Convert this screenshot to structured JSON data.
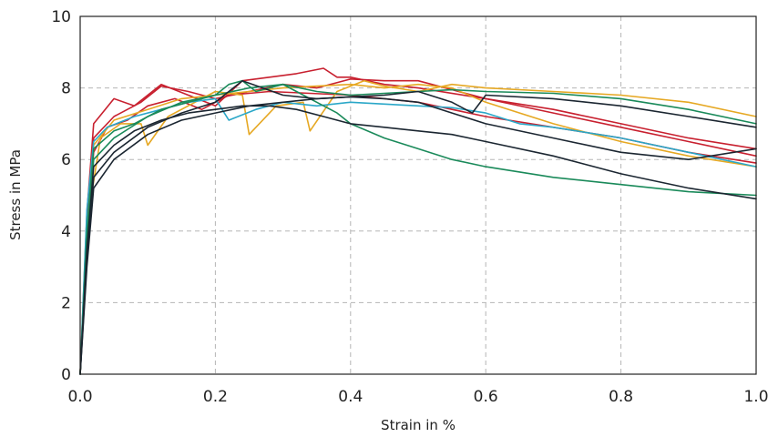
{
  "chart_data": {
    "type": "line",
    "title": "",
    "xlabel": "Strain in %",
    "ylabel": "Stress in MPa",
    "xlim": [
      0,
      1.0
    ],
    "ylim": [
      0,
      10
    ],
    "xticks": [
      "0.0",
      "0.2",
      "0.4",
      "0.6",
      "0.8",
      "1.0"
    ],
    "yticks": [
      "0",
      "2",
      "4",
      "6",
      "8",
      "10"
    ],
    "grid": true,
    "legend": "none",
    "series": [
      {
        "color": "#c8202f",
        "x": [
          0,
          0.01,
          0.02,
          0.05,
          0.08,
          0.12,
          0.16,
          0.2,
          0.24,
          0.28,
          0.32,
          0.36,
          0.38,
          0.4,
          0.45,
          0.5,
          0.6,
          0.7,
          0.8,
          0.9,
          1.0
        ],
        "y": [
          0,
          4.5,
          7.0,
          7.7,
          7.5,
          8.1,
          7.8,
          7.5,
          8.2,
          8.3,
          8.4,
          8.55,
          8.3,
          8.3,
          8.1,
          8.0,
          7.7,
          7.4,
          7.0,
          6.6,
          6.3
        ]
      },
      {
        "color": "#c8202f",
        "x": [
          0,
          0.01,
          0.02,
          0.05,
          0.09,
          0.12,
          0.16,
          0.2,
          0.25,
          0.3,
          0.35,
          0.4,
          0.45,
          0.5,
          0.6,
          0.7,
          0.8,
          0.9,
          1.0
        ],
        "y": [
          0,
          4.0,
          6.6,
          7.2,
          7.6,
          8.05,
          7.9,
          7.7,
          7.9,
          8.1,
          8.0,
          8.25,
          8.2,
          8.2,
          7.7,
          7.3,
          6.9,
          6.5,
          6.1
        ]
      },
      {
        "color": "#c8202f",
        "x": [
          0,
          0.01,
          0.02,
          0.04,
          0.07,
          0.1,
          0.14,
          0.18,
          0.22,
          0.28,
          0.34,
          0.4,
          0.5,
          0.6,
          0.7,
          0.8,
          0.9,
          1.0
        ],
        "y": [
          0,
          3.8,
          6.2,
          6.9,
          7.1,
          7.5,
          7.7,
          7.4,
          7.8,
          7.9,
          7.85,
          7.8,
          7.6,
          7.2,
          6.9,
          6.6,
          6.2,
          5.9
        ]
      },
      {
        "color": "#e6a823",
        "x": [
          0,
          0.01,
          0.03,
          0.06,
          0.09,
          0.1,
          0.13,
          0.17,
          0.2,
          0.24,
          0.25,
          0.29,
          0.33,
          0.34,
          0.38,
          0.42,
          0.45,
          0.5,
          0.55,
          0.6,
          0.7,
          0.8,
          0.9,
          1.0
        ],
        "y": [
          0,
          4.2,
          6.6,
          7.0,
          7.0,
          6.4,
          7.2,
          7.6,
          7.9,
          7.8,
          6.7,
          7.5,
          7.6,
          6.8,
          7.9,
          8.2,
          8.05,
          7.9,
          8.1,
          8.0,
          7.9,
          7.8,
          7.6,
          7.2
        ]
      },
      {
        "color": "#e6a823",
        "x": [
          0,
          0.01,
          0.02,
          0.05,
          0.1,
          0.15,
          0.2,
          0.25,
          0.3,
          0.35,
          0.4,
          0.45,
          0.5,
          0.55,
          0.6,
          0.7,
          0.8,
          0.9,
          1.0
        ],
        "y": [
          0,
          3.9,
          6.4,
          7.1,
          7.4,
          7.7,
          7.8,
          7.9,
          8.0,
          8.05,
          8.1,
          8.0,
          8.1,
          8.0,
          7.6,
          7.0,
          6.5,
          6.1,
          5.8
        ]
      },
      {
        "color": "#2aa7c8",
        "x": [
          0,
          0.01,
          0.02,
          0.04,
          0.08,
          0.12,
          0.16,
          0.2,
          0.22,
          0.26,
          0.3,
          0.35,
          0.4,
          0.45,
          0.5,
          0.55,
          0.6,
          0.65,
          0.7,
          0.8,
          0.9,
          1.0
        ],
        "y": [
          0,
          4.6,
          6.5,
          6.9,
          7.2,
          7.4,
          7.6,
          7.7,
          7.1,
          7.4,
          7.6,
          7.5,
          7.6,
          7.55,
          7.5,
          7.45,
          7.3,
          7.0,
          6.9,
          6.6,
          6.2,
          5.8
        ]
      },
      {
        "color": "#1a8a5a",
        "x": [
          0,
          0.01,
          0.02,
          0.05,
          0.08,
          0.12,
          0.16,
          0.2,
          0.22,
          0.24,
          0.26,
          0.3,
          0.32,
          0.35,
          0.38,
          0.4,
          0.45,
          0.5,
          0.55,
          0.6,
          0.7,
          0.8,
          0.9,
          1.0
        ],
        "y": [
          0,
          4.0,
          6.3,
          6.8,
          7.0,
          7.4,
          7.6,
          7.8,
          8.1,
          8.2,
          7.9,
          8.1,
          7.9,
          7.6,
          7.3,
          7.0,
          6.6,
          6.3,
          6.0,
          5.8,
          5.5,
          5.3,
          5.1,
          5.0
        ]
      },
      {
        "color": "#1a8a5a",
        "x": [
          0,
          0.01,
          0.02,
          0.05,
          0.1,
          0.15,
          0.2,
          0.25,
          0.3,
          0.35,
          0.4,
          0.45,
          0.5,
          0.55,
          0.6,
          0.7,
          0.8,
          0.9,
          1.0
        ],
        "y": [
          0,
          3.7,
          6.0,
          6.6,
          7.2,
          7.6,
          7.8,
          8.0,
          8.1,
          7.9,
          7.8,
          7.85,
          7.9,
          7.95,
          7.9,
          7.85,
          7.7,
          7.4,
          7.0
        ]
      },
      {
        "color": "#1b2631",
        "x": [
          0,
          0.01,
          0.02,
          0.05,
          0.08,
          0.12,
          0.16,
          0.2,
          0.24,
          0.28,
          0.32,
          0.36,
          0.4,
          0.45,
          0.5,
          0.55,
          0.6,
          0.7,
          0.8,
          0.9,
          1.0
        ],
        "y": [
          0,
          3.5,
          5.8,
          6.4,
          6.8,
          7.1,
          7.3,
          7.4,
          7.5,
          7.5,
          7.4,
          7.2,
          7.0,
          6.9,
          6.8,
          6.7,
          6.5,
          6.1,
          5.6,
          5.2,
          4.9
        ]
      },
      {
        "color": "#1b2631",
        "x": [
          0,
          0.01,
          0.02,
          0.05,
          0.1,
          0.15,
          0.2,
          0.24,
          0.3,
          0.35,
          0.4,
          0.45,
          0.5,
          0.55,
          0.58,
          0.6,
          0.7,
          0.8,
          0.9,
          1.0
        ],
        "y": [
          0,
          3.2,
          5.5,
          6.2,
          6.9,
          7.3,
          7.6,
          8.2,
          7.8,
          7.7,
          7.75,
          7.8,
          7.9,
          7.6,
          7.3,
          7.8,
          7.7,
          7.5,
          7.2,
          6.9
        ]
      },
      {
        "color": "#1b2631",
        "x": [
          0,
          0.01,
          0.02,
          0.05,
          0.1,
          0.15,
          0.2,
          0.25,
          0.3,
          0.35,
          0.4,
          0.45,
          0.5,
          0.55,
          0.6,
          0.7,
          0.8,
          0.9,
          1.0
        ],
        "y": [
          0,
          3.0,
          5.2,
          6.0,
          6.7,
          7.1,
          7.3,
          7.5,
          7.6,
          7.7,
          7.75,
          7.7,
          7.6,
          7.3,
          7.0,
          6.6,
          6.2,
          6.0,
          6.3
        ]
      }
    ]
  }
}
